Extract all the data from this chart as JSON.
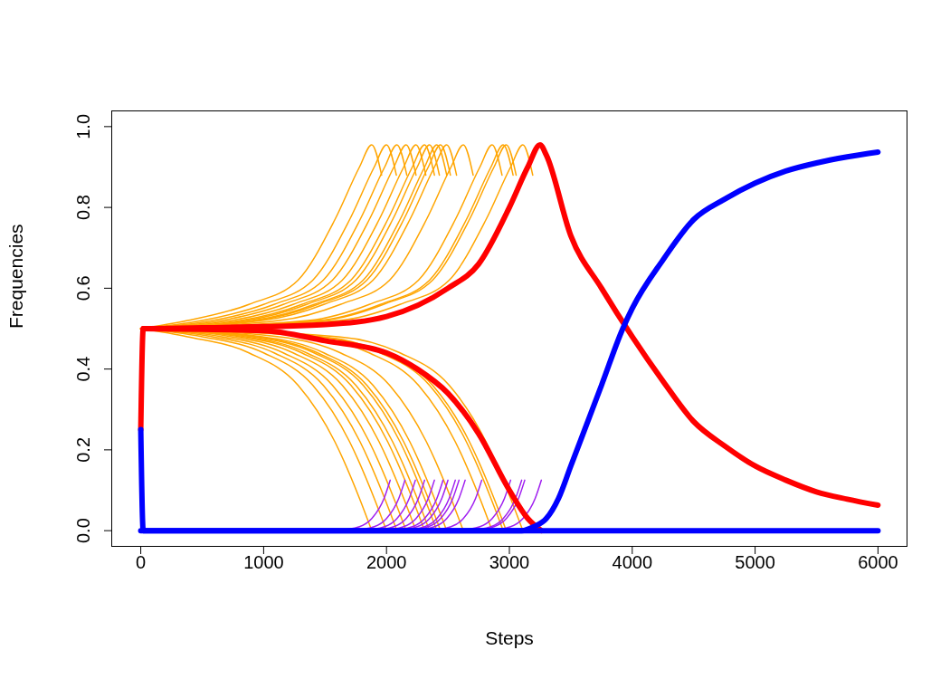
{
  "chart_data": {
    "type": "line",
    "xlabel": "Steps",
    "ylabel": "Frequencies",
    "xlim": [
      -240,
      6240
    ],
    "ylim": [
      -0.04,
      1.04
    ],
    "xticks": [
      0,
      1000,
      2000,
      3000,
      4000,
      5000,
      6000
    ],
    "yticks": [
      {
        "value": 0,
        "label": "0.0"
      },
      {
        "value": 0.2,
        "label": "0.2"
      },
      {
        "value": 0.4,
        "label": "0.4"
      },
      {
        "value": 0.6,
        "label": "0.6"
      },
      {
        "value": 0.8,
        "label": "0.8"
      },
      {
        "value": 1,
        "label": "1.0"
      }
    ],
    "series": [
      {
        "color": "#ffa500",
        "x": [
          0,
          380,
          880,
          1280,
          1580,
          1780,
          1880,
          1960
        ],
        "values": [
          0.5,
          0.52,
          0.56,
          0.62,
          0.77,
          0.9,
          0.955,
          0.88
        ]
      },
      {
        "color": "#ffa500",
        "x": [
          0,
          500,
          1000,
          1400,
          1700,
          1900,
          2000,
          2080
        ],
        "values": [
          0.5,
          0.52,
          0.56,
          0.62,
          0.77,
          0.9,
          0.955,
          0.88
        ]
      },
      {
        "color": "#ffa500",
        "x": [
          0,
          585,
          1085,
          1485,
          1785,
          1985,
          2085,
          2165
        ],
        "values": [
          0.5,
          0.52,
          0.56,
          0.62,
          0.77,
          0.9,
          0.955,
          0.88
        ]
      },
      {
        "color": "#ffa500",
        "x": [
          0,
          660,
          1160,
          1560,
          1860,
          2060,
          2160,
          2240
        ],
        "values": [
          0.5,
          0.52,
          0.56,
          0.62,
          0.77,
          0.9,
          0.955,
          0.88
        ]
      },
      {
        "color": "#ffa500",
        "x": [
          0,
          740,
          1240,
          1640,
          1940,
          2140,
          2240,
          2320
        ],
        "values": [
          0.5,
          0.52,
          0.56,
          0.62,
          0.77,
          0.9,
          0.955,
          0.88
        ]
      },
      {
        "color": "#ffa500",
        "x": [
          0,
          810,
          1310,
          1710,
          2010,
          2210,
          2310,
          2390
        ],
        "values": [
          0.5,
          0.52,
          0.56,
          0.62,
          0.77,
          0.9,
          0.955,
          0.88
        ]
      },
      {
        "color": "#ffa500",
        "x": [
          0,
          850,
          1350,
          1750,
          2050,
          2250,
          2350,
          2430
        ],
        "values": [
          0.5,
          0.52,
          0.56,
          0.62,
          0.77,
          0.9,
          0.955,
          0.88
        ]
      },
      {
        "color": "#ffa500",
        "x": [
          0,
          910,
          1410,
          1810,
          2110,
          2310,
          2410,
          2490
        ],
        "values": [
          0.5,
          0.52,
          0.56,
          0.62,
          0.77,
          0.9,
          0.955,
          0.88
        ]
      },
      {
        "color": "#ffa500",
        "x": [
          0,
          940,
          1440,
          1840,
          2140,
          2340,
          2440,
          2520
        ],
        "values": [
          0.5,
          0.52,
          0.56,
          0.62,
          0.77,
          0.9,
          0.955,
          0.88
        ]
      },
      {
        "color": "#ffa500",
        "x": [
          0,
          990,
          1490,
          1890,
          2190,
          2390,
          2490,
          2570
        ],
        "values": [
          0.5,
          0.52,
          0.56,
          0.62,
          0.77,
          0.9,
          0.955,
          0.88
        ]
      },
      {
        "color": "#ffa500",
        "x": [
          0,
          1125,
          1625,
          2025,
          2325,
          2525,
          2625,
          2705
        ],
        "values": [
          0.5,
          0.52,
          0.56,
          0.62,
          0.77,
          0.9,
          0.955,
          0.88
        ]
      },
      {
        "color": "#ffa500",
        "x": [
          0,
          1360,
          1860,
          2260,
          2560,
          2760,
          2860,
          2940
        ],
        "values": [
          0.5,
          0.52,
          0.56,
          0.62,
          0.77,
          0.9,
          0.955,
          0.88
        ]
      },
      {
        "color": "#ffa500",
        "x": [
          0,
          1450,
          1950,
          2350,
          2650,
          2850,
          2950,
          3030
        ],
        "values": [
          0.5,
          0.52,
          0.56,
          0.62,
          0.77,
          0.9,
          0.955,
          0.88
        ]
      },
      {
        "color": "#ffa500",
        "x": [
          0,
          1475,
          1975,
          2375,
          2675,
          2875,
          2975,
          3055
        ],
        "values": [
          0.5,
          0.52,
          0.56,
          0.62,
          0.77,
          0.9,
          0.955,
          0.88
        ]
      },
      {
        "color": "#ffa500",
        "x": [
          0,
          1610,
          2110,
          2510,
          2810,
          3010,
          3110,
          3190
        ],
        "values": [
          0.5,
          0.52,
          0.56,
          0.62,
          0.77,
          0.9,
          0.955,
          0.88
        ]
      },
      {
        "color": "#ffa500",
        "x": [
          0,
          380,
          880,
          1280,
          1580,
          1780,
          1880
        ],
        "values": [
          0.5,
          0.48,
          0.44,
          0.36,
          0.22,
          0.08,
          0
        ]
      },
      {
        "color": "#ffa500",
        "x": [
          0,
          500,
          1000,
          1400,
          1700,
          1900,
          2000
        ],
        "values": [
          0.5,
          0.48,
          0.44,
          0.36,
          0.22,
          0.08,
          0
        ]
      },
      {
        "color": "#ffa500",
        "x": [
          0,
          585,
          1085,
          1485,
          1785,
          1985,
          2085
        ],
        "values": [
          0.5,
          0.48,
          0.44,
          0.36,
          0.22,
          0.08,
          0
        ]
      },
      {
        "color": "#ffa500",
        "x": [
          0,
          660,
          1160,
          1560,
          1860,
          2060,
          2160
        ],
        "values": [
          0.5,
          0.48,
          0.44,
          0.36,
          0.22,
          0.08,
          0
        ]
      },
      {
        "color": "#ffa500",
        "x": [
          0,
          740,
          1240,
          1640,
          1940,
          2140,
          2240
        ],
        "values": [
          0.5,
          0.48,
          0.44,
          0.36,
          0.22,
          0.08,
          0
        ]
      },
      {
        "color": "#ffa500",
        "x": [
          0,
          810,
          1310,
          1710,
          2010,
          2210,
          2310
        ],
        "values": [
          0.5,
          0.48,
          0.44,
          0.36,
          0.22,
          0.08,
          0
        ]
      },
      {
        "color": "#ffa500",
        "x": [
          0,
          850,
          1350,
          1750,
          2050,
          2250,
          2350
        ],
        "values": [
          0.5,
          0.48,
          0.44,
          0.36,
          0.22,
          0.08,
          0
        ]
      },
      {
        "color": "#ffa500",
        "x": [
          0,
          910,
          1410,
          1810,
          2110,
          2310,
          2410
        ],
        "values": [
          0.5,
          0.48,
          0.44,
          0.36,
          0.22,
          0.08,
          0
        ]
      },
      {
        "color": "#ffa500",
        "x": [
          0,
          940,
          1440,
          1840,
          2140,
          2340,
          2440
        ],
        "values": [
          0.5,
          0.48,
          0.44,
          0.36,
          0.22,
          0.08,
          0
        ]
      },
      {
        "color": "#ffa500",
        "x": [
          0,
          990,
          1490,
          1890,
          2190,
          2390,
          2490
        ],
        "values": [
          0.5,
          0.48,
          0.44,
          0.36,
          0.22,
          0.08,
          0
        ]
      },
      {
        "color": "#ffa500",
        "x": [
          0,
          1125,
          1625,
          2025,
          2325,
          2525,
          2625
        ],
        "values": [
          0.5,
          0.48,
          0.44,
          0.36,
          0.22,
          0.08,
          0
        ]
      },
      {
        "color": "#ffa500",
        "x": [
          0,
          1360,
          1860,
          2260,
          2560,
          2760,
          2860
        ],
        "values": [
          0.5,
          0.48,
          0.44,
          0.36,
          0.22,
          0.08,
          0
        ]
      },
      {
        "color": "#ffa500",
        "x": [
          0,
          1450,
          1950,
          2350,
          2650,
          2850,
          2950
        ],
        "values": [
          0.5,
          0.48,
          0.44,
          0.36,
          0.22,
          0.08,
          0
        ]
      },
      {
        "color": "#ffa500",
        "x": [
          0,
          1475,
          1975,
          2375,
          2675,
          2875,
          2975
        ],
        "values": [
          0.5,
          0.48,
          0.44,
          0.36,
          0.22,
          0.08,
          0
        ]
      },
      {
        "color": "#ffa500",
        "x": [
          0,
          1610,
          2110,
          2510,
          2810,
          3010,
          3110
        ],
        "values": [
          0.5,
          0.48,
          0.44,
          0.36,
          0.22,
          0.08,
          0
        ]
      },
      {
        "color": "#a020f0",
        "x": [
          1580,
          1780,
          1880,
          1980,
          2030
        ],
        "values": [
          0,
          0.01,
          0.03,
          0.08,
          0.125
        ]
      },
      {
        "color": "#a020f0",
        "x": [
          1700,
          1900,
          2000,
          2100,
          2150
        ],
        "values": [
          0,
          0.01,
          0.03,
          0.08,
          0.125
        ]
      },
      {
        "color": "#a020f0",
        "x": [
          1785,
          1985,
          2085,
          2185,
          2235
        ],
        "values": [
          0,
          0.01,
          0.03,
          0.08,
          0.125
        ]
      },
      {
        "color": "#a020f0",
        "x": [
          1860,
          2060,
          2160,
          2260,
          2310
        ],
        "values": [
          0,
          0.01,
          0.03,
          0.08,
          0.125
        ]
      },
      {
        "color": "#a020f0",
        "x": [
          1940,
          2140,
          2240,
          2340,
          2390
        ],
        "values": [
          0,
          0.01,
          0.03,
          0.08,
          0.125
        ]
      },
      {
        "color": "#a020f0",
        "x": [
          2010,
          2210,
          2310,
          2410,
          2460
        ],
        "values": [
          0,
          0.01,
          0.03,
          0.08,
          0.125
        ]
      },
      {
        "color": "#a020f0",
        "x": [
          2050,
          2250,
          2350,
          2450,
          2500
        ],
        "values": [
          0,
          0.01,
          0.03,
          0.08,
          0.125
        ]
      },
      {
        "color": "#a020f0",
        "x": [
          2110,
          2310,
          2410,
          2510,
          2560
        ],
        "values": [
          0,
          0.01,
          0.03,
          0.08,
          0.125
        ]
      },
      {
        "color": "#a020f0",
        "x": [
          2140,
          2340,
          2440,
          2540,
          2590
        ],
        "values": [
          0,
          0.01,
          0.03,
          0.08,
          0.125
        ]
      },
      {
        "color": "#a020f0",
        "x": [
          2190,
          2390,
          2490,
          2590,
          2640
        ],
        "values": [
          0,
          0.01,
          0.03,
          0.08,
          0.125
        ]
      },
      {
        "color": "#a020f0",
        "x": [
          2325,
          2525,
          2625,
          2725,
          2775
        ],
        "values": [
          0,
          0.01,
          0.03,
          0.08,
          0.125
        ]
      },
      {
        "color": "#a020f0",
        "x": [
          2560,
          2760,
          2860,
          2960,
          3010
        ],
        "values": [
          0,
          0.01,
          0.03,
          0.08,
          0.125
        ]
      },
      {
        "color": "#a020f0",
        "x": [
          2650,
          2850,
          2950,
          3050,
          3100
        ],
        "values": [
          0,
          0.01,
          0.03,
          0.08,
          0.125
        ]
      },
      {
        "color": "#a020f0",
        "x": [
          2675,
          2875,
          2975,
          3075,
          3125
        ],
        "values": [
          0,
          0.01,
          0.03,
          0.08,
          0.125
        ]
      },
      {
        "color": "#a020f0",
        "x": [
          2810,
          3010,
          3110,
          3210,
          3260
        ],
        "values": [
          0,
          0.01,
          0.03,
          0.08,
          0.125
        ]
      },
      {
        "color": "#ff0000",
        "x": [
          0,
          20,
          500,
          1000,
          1500,
          2000,
          2500,
          2750,
          3000,
          3150,
          3250,
          3300,
          3500,
          3750,
          4000,
          4250,
          4500,
          4750,
          5000,
          5250,
          5500,
          5750,
          6000
        ],
        "values": [
          0.25,
          0.5,
          0.502,
          0.505,
          0.51,
          0.53,
          0.6,
          0.66,
          0.8,
          0.9,
          0.955,
          0.93,
          0.73,
          0.6,
          0.48,
          0.37,
          0.27,
          0.21,
          0.16,
          0.125,
          0.096,
          0.078,
          0.063
        ]
      },
      {
        "color": "#ff0000",
        "x": [
          20,
          1000,
          1500,
          2000,
          2250,
          2500,
          2750,
          3000,
          3150,
          3260
        ],
        "values": [
          0.5,
          0.495,
          0.47,
          0.44,
          0.4,
          0.34,
          0.24,
          0.1,
          0.03,
          0
        ]
      },
      {
        "color": "#0000ff",
        "x": [
          0,
          20,
          3100,
          3200,
          3300,
          3400,
          3500,
          3750,
          3923,
          4000,
          4250,
          4500,
          4750,
          5000,
          5250,
          5500,
          5750,
          6000
        ],
        "values": [
          0.25,
          0,
          0,
          0.01,
          0.03,
          0.08,
          0.16,
          0.36,
          0.5,
          0.55,
          0.67,
          0.77,
          0.82,
          0.86,
          0.89,
          0.91,
          0.925,
          0.937
        ]
      },
      {
        "color": "#0000ff",
        "x": [
          0,
          6000
        ],
        "values": [
          0,
          0
        ]
      }
    ]
  }
}
